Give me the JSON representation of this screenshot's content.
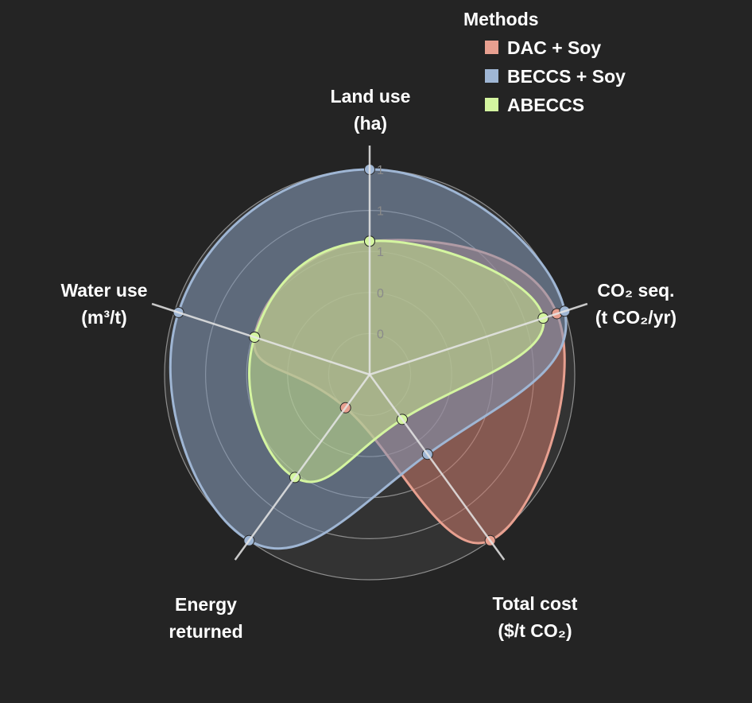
{
  "chart_data": {
    "type": "radar",
    "title": "",
    "axes": [
      {
        "label_lines": [
          "Land use",
          "(ha)"
        ]
      },
      {
        "label_lines": [
          "CO₂ seq.",
          "(t CO₂/yr)"
        ]
      },
      {
        "label_lines": [
          "Total cost",
          "($/t CO₂)"
        ]
      },
      {
        "label_lines": [
          "Energy",
          "returned"
        ]
      },
      {
        "label_lines": [
          "Water use",
          "(m³/t)"
        ]
      }
    ],
    "radial_ticks": [
      "0",
      "0",
      "1",
      "1",
      "1"
    ],
    "rmax": 1.0,
    "grid": true,
    "legend": {
      "title": "Methods",
      "position": "top-right"
    },
    "series": [
      {
        "name": "DAC + Soy",
        "color": "#e8a090",
        "fill": "#c9796a",
        "values": [
          0.65,
          0.96,
          1.0,
          0.2,
          0.59
        ]
      },
      {
        "name": "BECCS + Soy",
        "color": "#9fb6d4",
        "fill": "#8198b6",
        "values": [
          1.0,
          1.0,
          0.48,
          1.0,
          0.98
        ]
      },
      {
        "name": "ABECCS",
        "color": "#d4f5a0",
        "fill": "#c5e08c",
        "values": [
          0.65,
          0.89,
          0.27,
          0.62,
          0.59
        ]
      }
    ]
  }
}
